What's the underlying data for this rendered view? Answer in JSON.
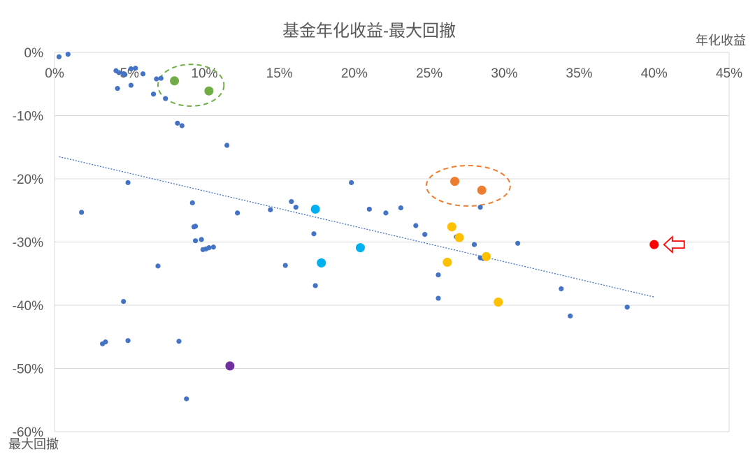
{
  "chart_data": {
    "type": "scatter",
    "title": "基金年化收益-最大回撤",
    "xlabel": "年化收益",
    "ylabel": "最大回撤",
    "xlim": [
      0,
      0.45
    ],
    "ylim": [
      -0.6,
      0
    ],
    "x_ticks": [
      "0%",
      "5%",
      "10%",
      "15%",
      "20%",
      "25%",
      "30%",
      "35%",
      "40%",
      "45%"
    ],
    "y_ticks": [
      "0%",
      "-10%",
      "-20%",
      "-30%",
      "-40%",
      "-50%",
      "-60%"
    ],
    "grid": "horizontal",
    "legend": "none",
    "colors": {
      "base": "#4472c4",
      "green": "#70ad47",
      "orange": "#ed7d31",
      "cyan": "#00b0f0",
      "gold": "#ffc000",
      "purple": "#7030a0",
      "red": "#ff0000",
      "trendline": "#4472c4",
      "grid": "#d9d9d9"
    },
    "series": [
      {
        "color": "base",
        "points": [
          [
            0.003,
            -0.007
          ],
          [
            0.009,
            -0.003
          ],
          [
            0.041,
            -0.029
          ],
          [
            0.043,
            -0.032
          ],
          [
            0.046,
            -0.034
          ],
          [
            0.047,
            -0.035
          ],
          [
            0.051,
            -0.026
          ],
          [
            0.054,
            -0.025
          ],
          [
            0.059,
            -0.034
          ],
          [
            0.042,
            -0.057
          ],
          [
            0.051,
            -0.052
          ],
          [
            0.066,
            -0.066
          ],
          [
            0.068,
            -0.042
          ],
          [
            0.071,
            -0.041
          ],
          [
            0.074,
            -0.073
          ],
          [
            0.082,
            -0.112
          ],
          [
            0.085,
            -0.116
          ],
          [
            0.115,
            -0.147
          ],
          [
            0.018,
            -0.253
          ],
          [
            0.049,
            -0.206
          ],
          [
            0.092,
            -0.238
          ],
          [
            0.093,
            -0.276
          ],
          [
            0.094,
            -0.275
          ],
          [
            0.094,
            -0.298
          ],
          [
            0.098,
            -0.296
          ],
          [
            0.099,
            -0.312
          ],
          [
            0.101,
            -0.311
          ],
          [
            0.103,
            -0.309
          ],
          [
            0.106,
            -0.308
          ],
          [
            0.122,
            -0.254
          ],
          [
            0.144,
            -0.249
          ],
          [
            0.158,
            -0.236
          ],
          [
            0.161,
            -0.245
          ],
          [
            0.154,
            -0.337
          ],
          [
            0.173,
            -0.287
          ],
          [
            0.174,
            -0.369
          ],
          [
            0.069,
            -0.338
          ],
          [
            0.046,
            -0.394
          ],
          [
            0.032,
            -0.461
          ],
          [
            0.034,
            -0.458
          ],
          [
            0.049,
            -0.456
          ],
          [
            0.083,
            -0.457
          ],
          [
            0.088,
            -0.548
          ],
          [
            0.198,
            -0.206
          ],
          [
            0.21,
            -0.248
          ],
          [
            0.221,
            -0.254
          ],
          [
            0.231,
            -0.246
          ],
          [
            0.241,
            -0.274
          ],
          [
            0.247,
            -0.288
          ],
          [
            0.256,
            -0.352
          ],
          [
            0.256,
            -0.389
          ],
          [
            0.268,
            -0.292
          ],
          [
            0.28,
            -0.304
          ],
          [
            0.284,
            -0.245
          ],
          [
            0.284,
            -0.325
          ],
          [
            0.286,
            -0.326
          ],
          [
            0.309,
            -0.302
          ],
          [
            0.338,
            -0.374
          ],
          [
            0.344,
            -0.417
          ],
          [
            0.382,
            -0.403
          ]
        ]
      },
      {
        "color": "green",
        "points": [
          [
            0.08,
            -0.045
          ],
          [
            0.103,
            -0.061
          ]
        ]
      },
      {
        "color": "orange",
        "points": [
          [
            0.267,
            -0.204
          ],
          [
            0.285,
            -0.218
          ]
        ]
      },
      {
        "color": "cyan",
        "points": [
          [
            0.174,
            -0.248
          ],
          [
            0.178,
            -0.333
          ],
          [
            0.204,
            -0.309
          ]
        ]
      },
      {
        "color": "gold",
        "points": [
          [
            0.265,
            -0.276
          ],
          [
            0.27,
            -0.293
          ],
          [
            0.262,
            -0.332
          ],
          [
            0.288,
            -0.323
          ],
          [
            0.296,
            -0.395
          ]
        ]
      },
      {
        "color": "purple",
        "points": [
          [
            0.117,
            -0.496
          ]
        ]
      },
      {
        "color": "red",
        "points": [
          [
            0.4,
            -0.304
          ]
        ]
      }
    ],
    "trendline": {
      "from": [
        0.003,
        -0.165
      ],
      "to": [
        0.4,
        -0.387
      ]
    },
    "annotations": [
      {
        "shape": "dashed-ellipse",
        "color": "green",
        "center": [
          0.091,
          -0.052
        ],
        "rx": 0.022,
        "ry": 0.033
      },
      {
        "shape": "dashed-ellipse",
        "color": "orange",
        "center": [
          0.276,
          -0.211
        ],
        "rx": 0.028,
        "ry": 0.032
      },
      {
        "shape": "outline-arrow-left",
        "color": "red",
        "at": [
          0.4,
          -0.304
        ]
      }
    ]
  }
}
